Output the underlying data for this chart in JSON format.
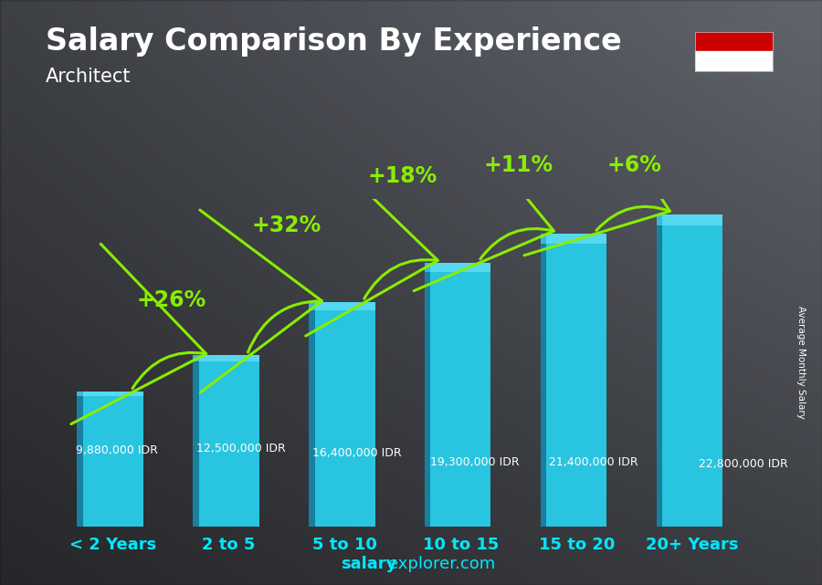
{
  "title": "Salary Comparison By Experience",
  "subtitle": "Architect",
  "ylabel": "Average Monthly Salary",
  "categories": [
    "< 2 Years",
    "2 to 5",
    "5 to 10",
    "10 to 15",
    "15 to 20",
    "20+ Years"
  ],
  "values": [
    9880000,
    12500000,
    16400000,
    19300000,
    21400000,
    22800000
  ],
  "salary_labels": [
    "9,880,000 IDR",
    "12,500,000 IDR",
    "16,400,000 IDR",
    "19,300,000 IDR",
    "21,400,000 IDR",
    "22,800,000 IDR"
  ],
  "pct_labels": [
    "+26%",
    "+32%",
    "+18%",
    "+11%",
    "+6%"
  ],
  "bar_color_main": "#29c4e0",
  "bar_color_light": "#55d8f0",
  "bar_color_dark": "#1a9ab8",
  "bar_color_side": "#1580a0",
  "text_color_white": "#ffffff",
  "text_color_cyan": "#00e8ff",
  "text_color_green": "#88ee00",
  "title_fontsize": 24,
  "subtitle_fontsize": 15,
  "salary_fontsize": 9,
  "pct_fontsize": 17,
  "xtick_fontsize": 13,
  "website_fontsize": 13,
  "flag_red": "#cc0000",
  "flag_white": "#ffffff",
  "bg_color": "#4a4a4a"
}
